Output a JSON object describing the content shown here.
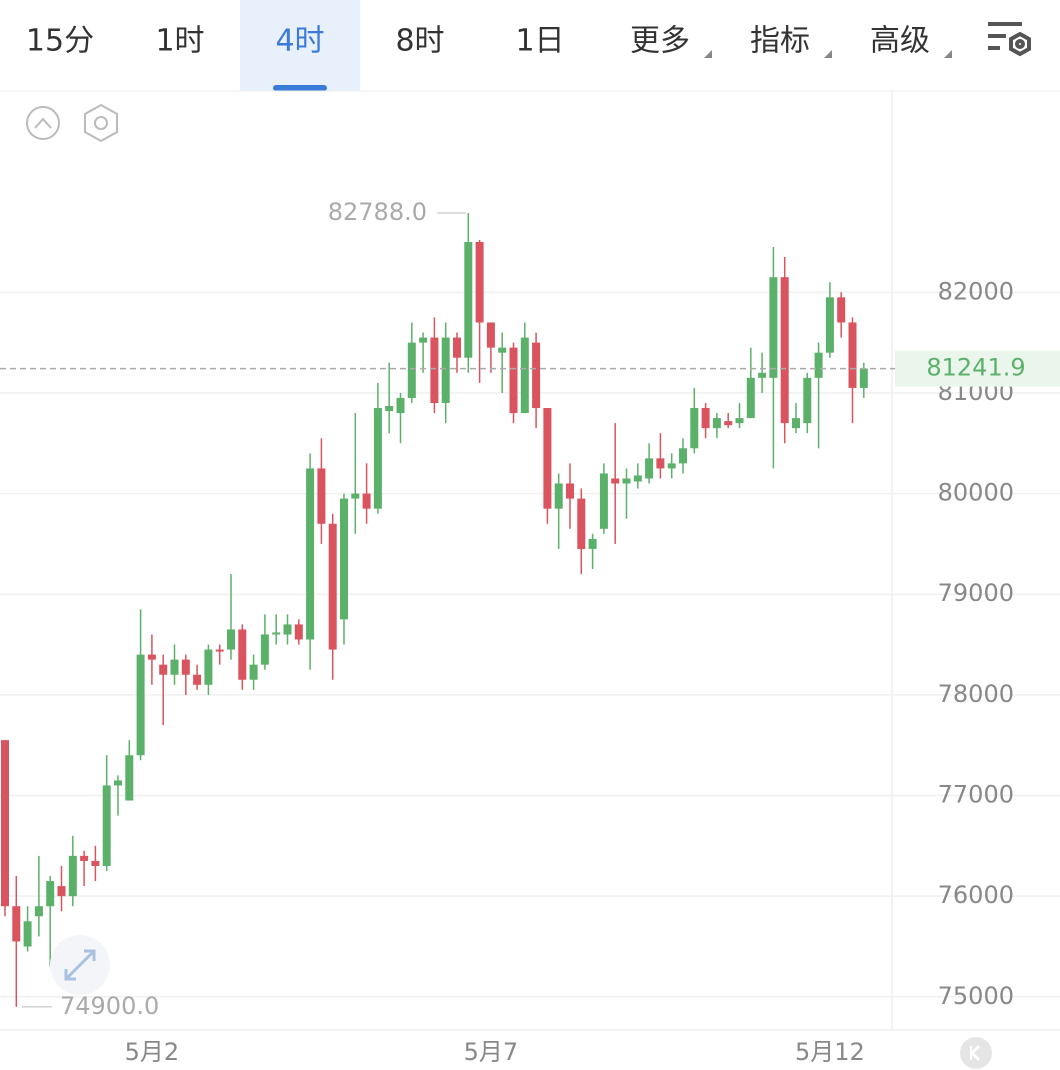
{
  "toolbar": {
    "tabs": [
      "15分",
      "1时",
      "4时",
      "8时",
      "1日",
      "更多",
      "指标",
      "高级"
    ],
    "active": 2
  },
  "chart_data": {
    "type": "candlestick",
    "categories": [
      null,
      null,
      null,
      null,
      null,
      null,
      null,
      null,
      null,
      null,
      null,
      null,
      null,
      "5月2",
      null,
      null,
      null,
      null,
      null,
      null,
      null,
      null,
      null,
      null,
      null,
      null,
      null,
      null,
      null,
      null,
      null,
      null,
      null,
      null,
      null,
      null,
      null,
      null,
      null,
      null,
      null,
      null,
      null,
      "5月7",
      null,
      null,
      null,
      null,
      null,
      null,
      null,
      null,
      null,
      null,
      null,
      null,
      null,
      null,
      null,
      null,
      null,
      null,
      null,
      null,
      null,
      null,
      null,
      null,
      null,
      null,
      null,
      null,
      null,
      "5月12",
      null,
      null,
      null
    ],
    "open": [
      77550,
      75900,
      75500,
      75800,
      75900,
      76100,
      76000,
      76400,
      76350,
      76300,
      77100,
      76950,
      77400,
      78400,
      78300,
      78200,
      78350,
      78200,
      78100,
      78450,
      78450,
      78650,
      78150,
      78300,
      78600,
      78600,
      78700,
      78550,
      80250,
      79700,
      78750,
      79950,
      80000,
      79850,
      80820,
      80800,
      80950,
      81500,
      81550,
      80900,
      81550,
      81350,
      82500,
      81700,
      81400,
      81450,
      80800,
      81500,
      80850,
      79850,
      80100,
      79950,
      79450,
      79650,
      80150,
      80100,
      80120,
      80150,
      80350,
      80250,
      80300,
      80450,
      80850,
      80650,
      80720,
      80700,
      80750,
      81150,
      81150,
      82150,
      80650,
      80700,
      81150,
      81400,
      81950,
      81700,
      81050
    ],
    "high": [
      77550,
      76200,
      75900,
      76400,
      76200,
      76300,
      76600,
      76450,
      76500,
      77400,
      77200,
      77550,
      78850,
      78600,
      78400,
      78500,
      78400,
      78300,
      78500,
      78500,
      79200,
      78700,
      78400,
      78800,
      78800,
      78800,
      78750,
      80400,
      80550,
      79800,
      80000,
      80800,
      80300,
      81100,
      81300,
      81000,
      81700,
      81600,
      81750,
      81700,
      81600,
      82788,
      82520,
      81700,
      81600,
      81500,
      81700,
      81600,
      80850,
      80200,
      80300,
      80050,
      79600,
      80300,
      80700,
      80250,
      80300,
      80500,
      80600,
      80400,
      80550,
      81050,
      80900,
      80800,
      80800,
      80900,
      81450,
      81400,
      82450,
      82350,
      80900,
      81200,
      81500,
      82100,
      82000,
      81750,
      81300
    ],
    "low": [
      75800,
      74900,
      75450,
      75600,
      75300,
      75850,
      75900,
      76100,
      76150,
      76250,
      76800,
      76950,
      77350,
      78100,
      77700,
      78100,
      78000,
      78050,
      78000,
      78300,
      78350,
      78050,
      78050,
      78250,
      78500,
      78500,
      78500,
      78250,
      79500,
      78150,
      78500,
      79600,
      79700,
      79800,
      80600,
      80500,
      80900,
      81200,
      80800,
      80700,
      81200,
      81200,
      81100,
      81200,
      81000,
      80700,
      80800,
      80650,
      79700,
      79450,
      79650,
      79200,
      79250,
      79600,
      79500,
      79750,
      80050,
      80100,
      80150,
      80150,
      80200,
      80400,
      80550,
      80550,
      80650,
      80650,
      80750,
      81000,
      80250,
      80500,
      80600,
      80600,
      80450,
      81350,
      81550,
      80700,
      80950
    ],
    "close": [
      75900,
      75550,
      75750,
      75900,
      76150,
      76000,
      76400,
      76350,
      76300,
      77100,
      77150,
      77400,
      78400,
      78350,
      78200,
      78350,
      78200,
      78100,
      78450,
      78430,
      78650,
      78150,
      78300,
      78600,
      78620,
      78700,
      78550,
      80250,
      79700,
      78450,
      79950,
      80000,
      79850,
      80850,
      80870,
      80950,
      81500,
      81550,
      80900,
      81550,
      81350,
      82500,
      81700,
      81450,
      81450,
      80800,
      81550,
      80850,
      79850,
      80100,
      79950,
      79450,
      79550,
      80200,
      80100,
      80150,
      80180,
      80350,
      80250,
      80300,
      80450,
      80850,
      80650,
      80750,
      80680,
      80750,
      81150,
      81200,
      82150,
      80700,
      80750,
      81150,
      81400,
      81950,
      81700,
      81050,
      81241.9
    ],
    "up_color": "#5cb16a",
    "down_color": "#d9545e",
    "ylim": [
      74670,
      84000
    ],
    "yticks": [
      75000,
      76000,
      77000,
      78000,
      79000,
      80000,
      81000,
      82000
    ],
    "grid": true,
    "annotations": [
      {
        "value": 82788,
        "label": "82788.0"
      },
      {
        "value": 74900,
        "label": "74900.0"
      }
    ],
    "last_price": 81241.9
  }
}
